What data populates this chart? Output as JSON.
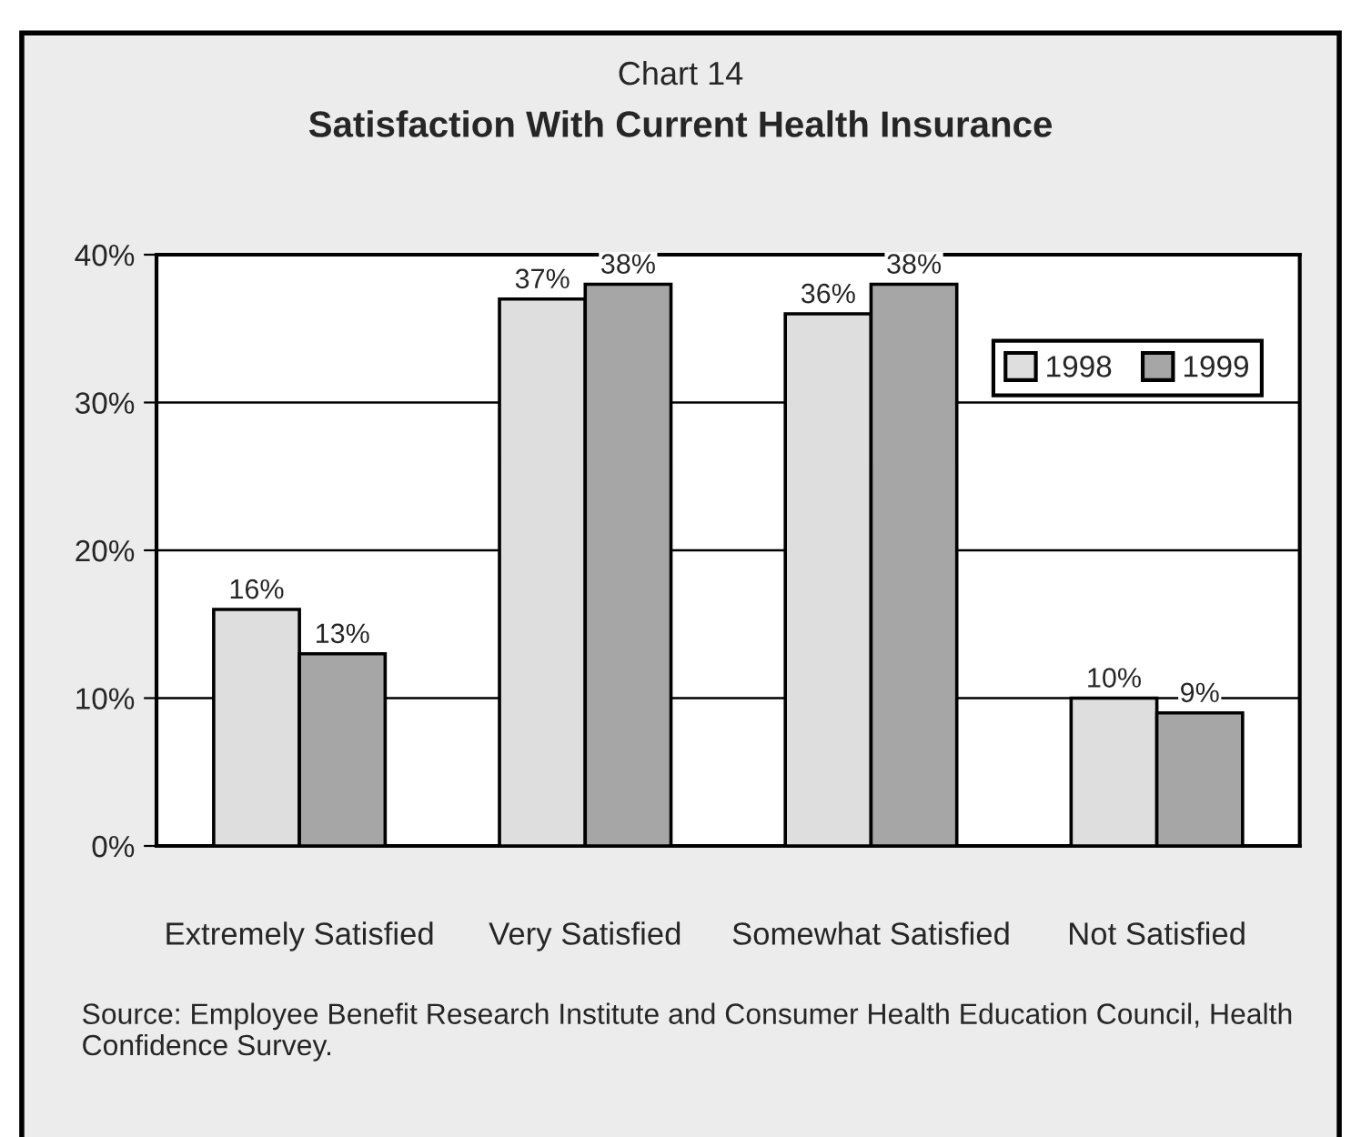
{
  "chart_data": {
    "type": "bar",
    "title": "Chart 14",
    "subtitle": "Satisfaction With Current Health Insurance",
    "categories": [
      "Extremely Satisfied",
      "Very Satisfied",
      "Somewhat Satisfied",
      "Not Satisfied"
    ],
    "series": [
      {
        "name": "1998",
        "color": "#dedede",
        "values": [
          16,
          37,
          36,
          10
        ],
        "value_labels": [
          "16%",
          "37%",
          "36%",
          "10%"
        ]
      },
      {
        "name": "1999",
        "color": "#a6a6a6",
        "values": [
          13,
          38,
          38,
          9
        ],
        "value_labels": [
          "13%",
          "38%",
          "38%",
          "9%"
        ]
      }
    ],
    "ylim": [
      0,
      40
    ],
    "yticks": [
      {
        "value": 0,
        "label": "0%"
      },
      {
        "value": 10,
        "label": "10%"
      },
      {
        "value": 20,
        "label": "20%"
      },
      {
        "value": 30,
        "label": "30%"
      },
      {
        "value": 40,
        "label": "40%"
      }
    ],
    "grid": "y",
    "legend": "top right",
    "annotations": [
      "Source: Employee Benefit Research Institute and Consumer Health Education Council, Health Confidence Survey."
    ]
  }
}
